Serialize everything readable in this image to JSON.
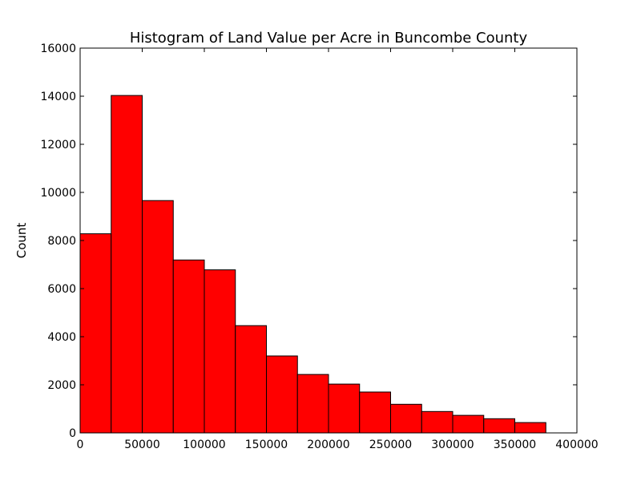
{
  "chart_data": {
    "type": "bar",
    "title": "Histogram of Land Value per Acre in Buncombe County",
    "xlabel": "",
    "ylabel": "Count",
    "bin_width": 25000,
    "bins": [
      {
        "start": 0,
        "end": 25000,
        "count": 8280
      },
      {
        "start": 25000,
        "end": 50000,
        "count": 14030
      },
      {
        "start": 50000,
        "end": 75000,
        "count": 9660
      },
      {
        "start": 75000,
        "end": 100000,
        "count": 7190
      },
      {
        "start": 100000,
        "end": 125000,
        "count": 6780
      },
      {
        "start": 125000,
        "end": 150000,
        "count": 4460
      },
      {
        "start": 150000,
        "end": 175000,
        "count": 3200
      },
      {
        "start": 175000,
        "end": 200000,
        "count": 2430
      },
      {
        "start": 200000,
        "end": 225000,
        "count": 2030
      },
      {
        "start": 225000,
        "end": 250000,
        "count": 1700
      },
      {
        "start": 250000,
        "end": 275000,
        "count": 1190
      },
      {
        "start": 275000,
        "end": 300000,
        "count": 890
      },
      {
        "start": 300000,
        "end": 325000,
        "count": 730
      },
      {
        "start": 325000,
        "end": 350000,
        "count": 590
      },
      {
        "start": 350000,
        "end": 375000,
        "count": 430
      }
    ],
    "xlim": [
      0,
      400000
    ],
    "ylim": [
      0,
      16000
    ],
    "xticks": [
      0,
      50000,
      100000,
      150000,
      200000,
      250000,
      300000,
      350000,
      400000
    ],
    "yticks": [
      0,
      2000,
      4000,
      6000,
      8000,
      10000,
      12000,
      14000,
      16000
    ],
    "grid": false,
    "bar_color": "#ff0000",
    "edge_color": "#000000"
  }
}
